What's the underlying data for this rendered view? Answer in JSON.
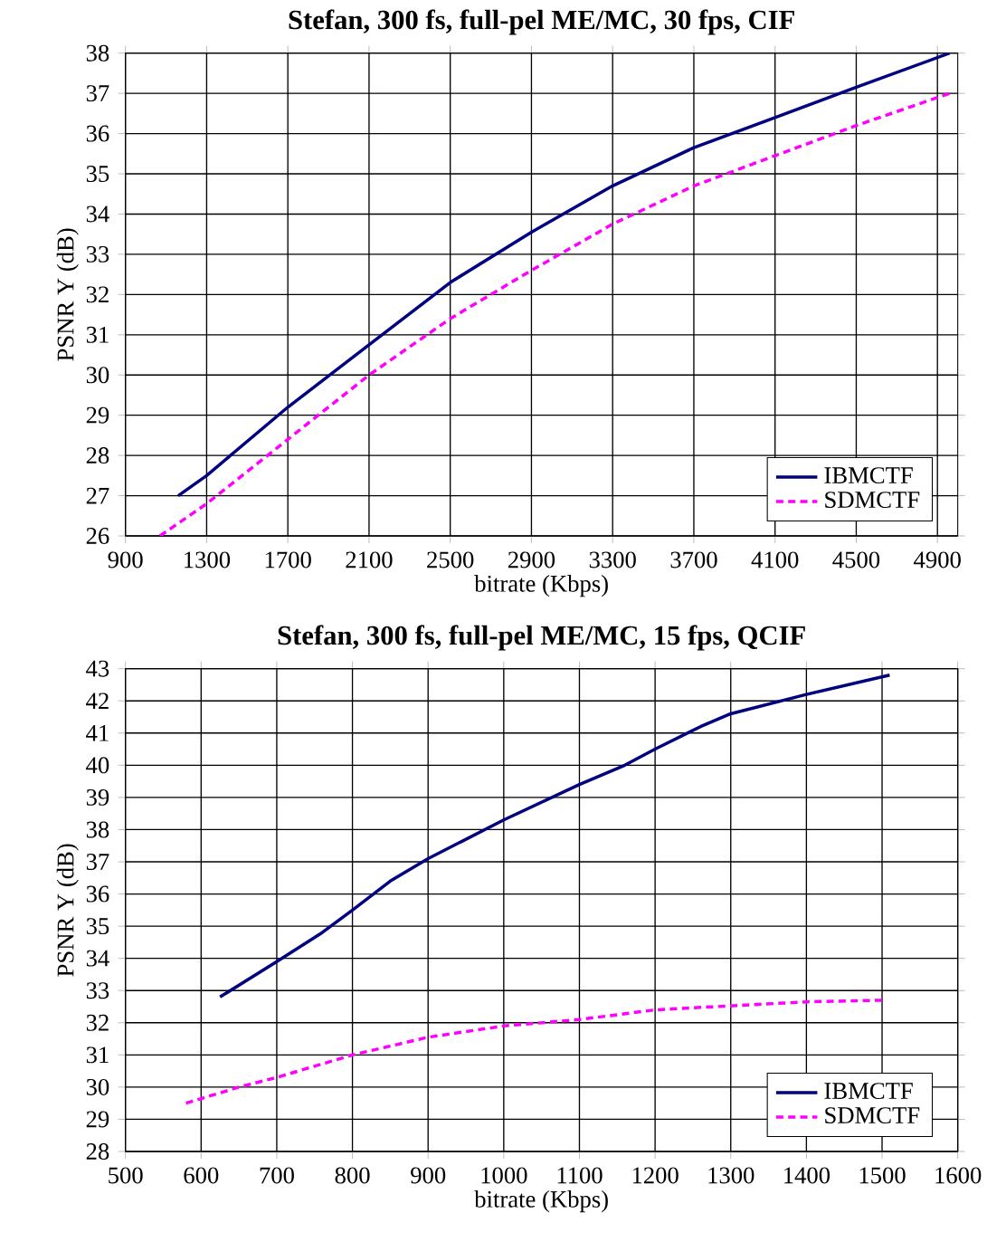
{
  "chart_data": [
    {
      "type": "line",
      "title": "Stefan, 300 fs, full-pel ME/MC, 30 fps, CIF",
      "xlabel": "bitrate (Kbps)",
      "ylabel": "PSNR Y (dB)",
      "xlim": [
        900,
        5000
      ],
      "xticks": [
        900,
        1300,
        1700,
        2100,
        2500,
        2900,
        3300,
        3700,
        4100,
        4500,
        4900
      ],
      "ylim": [
        26,
        38
      ],
      "yticks": [
        26,
        27,
        28,
        29,
        30,
        31,
        32,
        33,
        34,
        35,
        36,
        37,
        38
      ],
      "grid": true,
      "legend": "bottom right",
      "series": [
        {
          "name": "IBMCTF",
          "color": "#000080",
          "line_style": "solid",
          "x": [
            1160,
            1300,
            1700,
            2100,
            2500,
            2900,
            3300,
            3700,
            4100,
            4500,
            4960
          ],
          "values": [
            27,
            27.5,
            29.2,
            30.75,
            32.3,
            33.55,
            34.7,
            35.65,
            36.4,
            37.15,
            38
          ]
        },
        {
          "name": "SDMCTF",
          "color": "#ff00ff",
          "line_style": "dashed",
          "x": [
            1070,
            1300,
            1700,
            2100,
            2500,
            2900,
            3300,
            3700,
            4100,
            4500,
            4960
          ],
          "values": [
            26,
            26.8,
            28.4,
            30.0,
            31.4,
            32.6,
            33.75,
            34.7,
            35.45,
            36.2,
            37
          ]
        }
      ]
    },
    {
      "type": "line",
      "title": "Stefan, 300 fs, full-pel ME/MC, 15 fps, QCIF",
      "xlabel": "bitrate (Kbps)",
      "ylabel": "PSNR Y (dB)",
      "xlim": [
        500,
        1600
      ],
      "xticks": [
        500,
        600,
        700,
        800,
        900,
        1000,
        1100,
        1200,
        1300,
        1400,
        1500,
        1600
      ],
      "ylim": [
        28,
        43
      ],
      "yticks": [
        28,
        29,
        30,
        31,
        32,
        33,
        34,
        35,
        36,
        37,
        38,
        39,
        40,
        41,
        42,
        43
      ],
      "grid": true,
      "legend": "bottom right",
      "series": [
        {
          "name": "IBMCTF",
          "color": "#000080",
          "line_style": "solid",
          "x": [
            625,
            700,
            760,
            800,
            850,
            900,
            1000,
            1100,
            1160,
            1200,
            1260,
            1300,
            1400,
            1510
          ],
          "values": [
            32.8,
            33.9,
            34.8,
            35.5,
            36.4,
            37.1,
            38.3,
            39.4,
            40.0,
            40.5,
            41.2,
            41.6,
            42.2,
            42.8
          ]
        },
        {
          "name": "SDMCTF",
          "color": "#ff00ff",
          "line_style": "dashed",
          "x": [
            580,
            650,
            700,
            800,
            900,
            1000,
            1100,
            1200,
            1280,
            1400,
            1500
          ],
          "values": [
            29.5,
            30.0,
            30.3,
            31.0,
            31.55,
            31.9,
            32.1,
            32.4,
            32.5,
            32.65,
            32.7
          ]
        }
      ]
    }
  ]
}
